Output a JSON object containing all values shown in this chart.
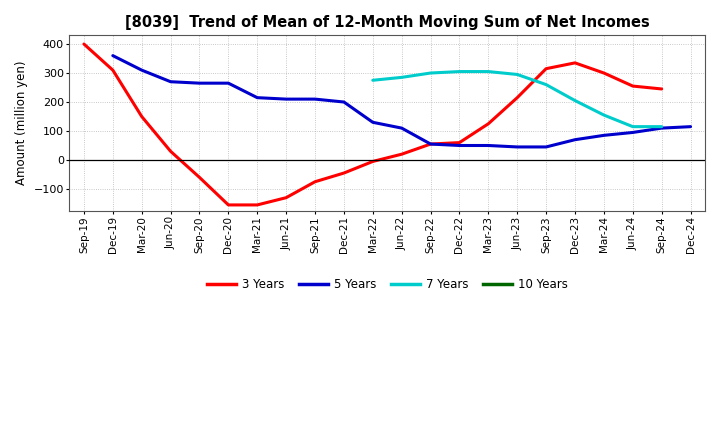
{
  "title": "[8039]  Trend of Mean of 12-Month Moving Sum of Net Incomes",
  "ylabel": "Amount (million yen)",
  "background_color": "#ffffff",
  "plot_bg_color": "#ffffff",
  "grid_color": "#999999",
  "x_labels": [
    "Sep-19",
    "Dec-19",
    "Mar-20",
    "Jun-20",
    "Sep-20",
    "Dec-20",
    "Mar-21",
    "Jun-21",
    "Sep-21",
    "Dec-21",
    "Mar-22",
    "Jun-22",
    "Sep-22",
    "Dec-22",
    "Mar-23",
    "Jun-23",
    "Sep-23",
    "Dec-23",
    "Mar-24",
    "Jun-24",
    "Sep-24",
    "Dec-24"
  ],
  "ylim": [
    -175,
    430
  ],
  "yticks": [
    -100,
    0,
    100,
    200,
    300,
    400
  ],
  "series": {
    "3 Years": {
      "color": "#ff0000",
      "x_indices": [
        0,
        1,
        2,
        3,
        4,
        5,
        6,
        7,
        8,
        9,
        10,
        11,
        12,
        13,
        14,
        15,
        16,
        17,
        18,
        19,
        20
      ],
      "values": [
        400,
        310,
        150,
        30,
        -60,
        -155,
        -155,
        -130,
        -75,
        -45,
        -5,
        20,
        55,
        60,
        125,
        215,
        315,
        335,
        300,
        255,
        245
      ]
    },
    "5 Years": {
      "color": "#0000cc",
      "x_indices": [
        1,
        2,
        3,
        4,
        5,
        6,
        7,
        8,
        9,
        10,
        11,
        12,
        13,
        14,
        15,
        16,
        17,
        18,
        19,
        20,
        21
      ],
      "values": [
        360,
        310,
        270,
        265,
        265,
        215,
        210,
        210,
        200,
        130,
        110,
        55,
        50,
        50,
        45,
        45,
        70,
        85,
        95,
        110,
        115
      ]
    },
    "7 Years": {
      "color": "#00cccc",
      "x_indices": [
        10,
        11,
        12,
        13,
        14,
        15,
        16,
        17,
        18,
        19,
        20
      ],
      "values": [
        275,
        285,
        300,
        305,
        305,
        295,
        260,
        205,
        155,
        115,
        115
      ]
    },
    "10 Years": {
      "color": "#006600",
      "x_indices": [],
      "values": []
    }
  },
  "legend_labels": [
    "3 Years",
    "5 Years",
    "7 Years",
    "10 Years"
  ],
  "legend_colors": [
    "#ff0000",
    "#0000cc",
    "#00cccc",
    "#006600"
  ]
}
